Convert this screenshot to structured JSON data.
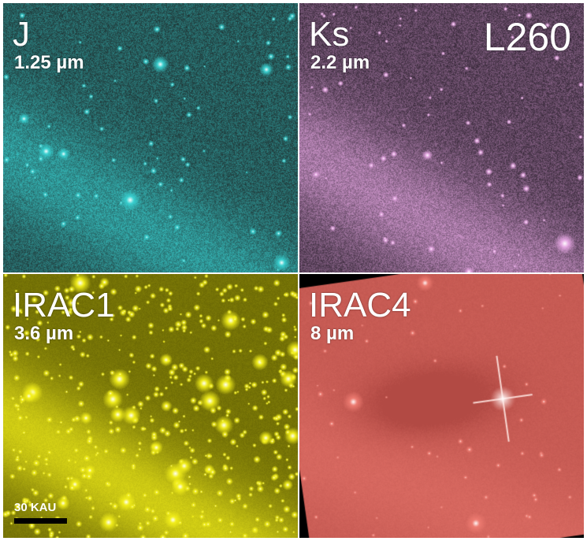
{
  "object_name": "L260",
  "panels": [
    {
      "id": "j",
      "band": "J",
      "wavelength": "1.25 µm",
      "color": "#39d3d3"
    },
    {
      "id": "ks",
      "band": "Ks",
      "wavelength": "2.2 µm",
      "color": "#e9a9e6"
    },
    {
      "id": "i1",
      "band": "IRAC1",
      "wavelength": "3.6 µm",
      "color": "#f4f01a"
    },
    {
      "id": "i4",
      "band": "IRAC4",
      "wavelength": "8 µm",
      "color": "#ef7c72"
    }
  ],
  "scale_bar": {
    "label": "30 KAU"
  },
  "colors": {
    "j_bg": "#1e2e2e",
    "ks_bg": "#2e2230",
    "irac1_bg": "#4e4c00",
    "irac4_bg": "#b24a44"
  }
}
